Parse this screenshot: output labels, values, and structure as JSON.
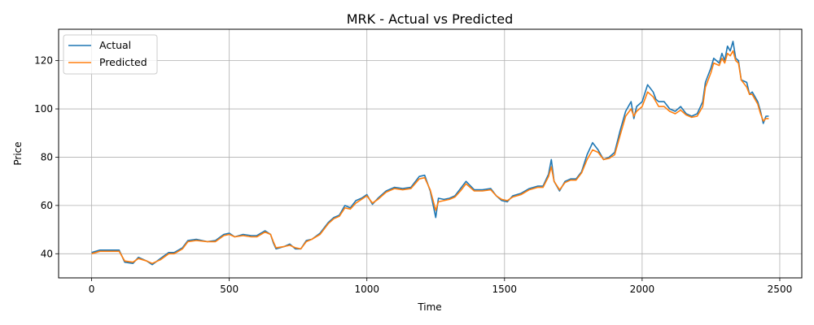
{
  "chart_data": {
    "type": "line",
    "title": "MRK - Actual vs Predicted",
    "xlabel": "Time",
    "ylabel": "Price",
    "xlim": [
      -120,
      2580
    ],
    "ylim": [
      30,
      133
    ],
    "xticks": [
      0,
      500,
      1000,
      1500,
      2000,
      2500
    ],
    "yticks": [
      40,
      60,
      80,
      100,
      120
    ],
    "grid": true,
    "legend_position": "top-left",
    "series": [
      {
        "name": "Actual",
        "color": "#1f77b4",
        "points": [
          [
            0,
            40.5
          ],
          [
            30,
            41.5
          ],
          [
            60,
            41.5
          ],
          [
            100,
            41.5
          ],
          [
            120,
            36.5
          ],
          [
            150,
            36
          ],
          [
            170,
            38.5
          ],
          [
            200,
            37
          ],
          [
            220,
            35.5
          ],
          [
            250,
            38
          ],
          [
            280,
            40.5
          ],
          [
            300,
            40.5
          ],
          [
            330,
            42.5
          ],
          [
            350,
            45.5
          ],
          [
            380,
            46
          ],
          [
            420,
            45
          ],
          [
            450,
            45.5
          ],
          [
            480,
            48
          ],
          [
            500,
            48.5
          ],
          [
            520,
            47
          ],
          [
            550,
            48
          ],
          [
            580,
            47.5
          ],
          [
            600,
            47.5
          ],
          [
            630,
            49.5
          ],
          [
            650,
            48
          ],
          [
            660,
            44.5
          ],
          [
            670,
            42
          ],
          [
            700,
            43
          ],
          [
            720,
            44
          ],
          [
            740,
            42
          ],
          [
            760,
            42
          ],
          [
            780,
            45.5
          ],
          [
            800,
            46
          ],
          [
            830,
            48.5
          ],
          [
            860,
            53
          ],
          [
            880,
            55
          ],
          [
            900,
            56
          ],
          [
            920,
            60
          ],
          [
            940,
            59
          ],
          [
            960,
            62
          ],
          [
            980,
            63
          ],
          [
            1000,
            64.5
          ],
          [
            1020,
            60.5
          ],
          [
            1040,
            63
          ],
          [
            1070,
            66
          ],
          [
            1100,
            67.5
          ],
          [
            1130,
            67
          ],
          [
            1160,
            67.5
          ],
          [
            1190,
            72
          ],
          [
            1210,
            72.5
          ],
          [
            1230,
            66
          ],
          [
            1250,
            55
          ],
          [
            1260,
            63
          ],
          [
            1280,
            62.5
          ],
          [
            1300,
            63
          ],
          [
            1320,
            64
          ],
          [
            1340,
            67
          ],
          [
            1360,
            70
          ],
          [
            1390,
            66.5
          ],
          [
            1420,
            66.5
          ],
          [
            1450,
            67
          ],
          [
            1470,
            64
          ],
          [
            1490,
            62
          ],
          [
            1510,
            61.5
          ],
          [
            1530,
            64
          ],
          [
            1560,
            65
          ],
          [
            1590,
            67
          ],
          [
            1620,
            68
          ],
          [
            1640,
            68
          ],
          [
            1660,
            73
          ],
          [
            1670,
            79
          ],
          [
            1680,
            70
          ],
          [
            1700,
            66
          ],
          [
            1720,
            70
          ],
          [
            1740,
            71
          ],
          [
            1760,
            71
          ],
          [
            1780,
            74
          ],
          [
            1800,
            81
          ],
          [
            1820,
            86
          ],
          [
            1840,
            83
          ],
          [
            1860,
            79
          ],
          [
            1880,
            80
          ],
          [
            1900,
            82
          ],
          [
            1920,
            91
          ],
          [
            1940,
            99
          ],
          [
            1960,
            103
          ],
          [
            1970,
            96
          ],
          [
            1980,
            101
          ],
          [
            2000,
            103
          ],
          [
            2020,
            110
          ],
          [
            2040,
            107
          ],
          [
            2050,
            104
          ],
          [
            2060,
            103
          ],
          [
            2080,
            103
          ],
          [
            2100,
            100
          ],
          [
            2120,
            99
          ],
          [
            2140,
            101
          ],
          [
            2160,
            98
          ],
          [
            2180,
            97
          ],
          [
            2200,
            98
          ],
          [
            2220,
            103
          ],
          [
            2230,
            111
          ],
          [
            2250,
            117
          ],
          [
            2260,
            121
          ],
          [
            2280,
            119
          ],
          [
            2290,
            123
          ],
          [
            2300,
            120
          ],
          [
            2310,
            126
          ],
          [
            2320,
            124
          ],
          [
            2330,
            128
          ],
          [
            2340,
            121
          ],
          [
            2350,
            120
          ],
          [
            2360,
            112
          ],
          [
            2380,
            111
          ],
          [
            2390,
            106
          ],
          [
            2400,
            107
          ],
          [
            2420,
            103
          ],
          [
            2430,
            99
          ],
          [
            2440,
            94
          ],
          [
            2450,
            97
          ],
          [
            2460,
            97
          ]
        ]
      },
      {
        "name": "Predicted",
        "color": "#ff7f0e",
        "points": [
          [
            0,
            40
          ],
          [
            30,
            41
          ],
          [
            60,
            41
          ],
          [
            100,
            41
          ],
          [
            120,
            37
          ],
          [
            150,
            36.5
          ],
          [
            170,
            38
          ],
          [
            200,
            37
          ],
          [
            220,
            36
          ],
          [
            250,
            37.5
          ],
          [
            280,
            40
          ],
          [
            300,
            40
          ],
          [
            330,
            42
          ],
          [
            350,
            45
          ],
          [
            380,
            45.5
          ],
          [
            420,
            45
          ],
          [
            450,
            45
          ],
          [
            480,
            47.5
          ],
          [
            500,
            48
          ],
          [
            520,
            47
          ],
          [
            550,
            47.5
          ],
          [
            580,
            47
          ],
          [
            600,
            47
          ],
          [
            630,
            49
          ],
          [
            650,
            48
          ],
          [
            660,
            45
          ],
          [
            670,
            42.5
          ],
          [
            700,
            43
          ],
          [
            720,
            43.5
          ],
          [
            740,
            42.5
          ],
          [
            760,
            42
          ],
          [
            780,
            45
          ],
          [
            800,
            46
          ],
          [
            830,
            48
          ],
          [
            860,
            52.5
          ],
          [
            880,
            54.5
          ],
          [
            900,
            55.5
          ],
          [
            920,
            59
          ],
          [
            940,
            58.5
          ],
          [
            960,
            61
          ],
          [
            980,
            62.5
          ],
          [
            1000,
            64
          ],
          [
            1020,
            61
          ],
          [
            1040,
            62.5
          ],
          [
            1070,
            65.5
          ],
          [
            1100,
            67
          ],
          [
            1130,
            66.5
          ],
          [
            1160,
            67
          ],
          [
            1190,
            71
          ],
          [
            1210,
            71.5
          ],
          [
            1230,
            66.5
          ],
          [
            1250,
            58
          ],
          [
            1260,
            61.5
          ],
          [
            1280,
            62
          ],
          [
            1300,
            62.5
          ],
          [
            1320,
            63.5
          ],
          [
            1340,
            66
          ],
          [
            1360,
            69
          ],
          [
            1390,
            66
          ],
          [
            1420,
            66
          ],
          [
            1450,
            66.5
          ],
          [
            1470,
            64
          ],
          [
            1490,
            62.5
          ],
          [
            1510,
            62
          ],
          [
            1530,
            63.5
          ],
          [
            1560,
            64.5
          ],
          [
            1590,
            66.5
          ],
          [
            1620,
            67.5
          ],
          [
            1640,
            67.5
          ],
          [
            1660,
            72
          ],
          [
            1670,
            76
          ],
          [
            1680,
            70
          ],
          [
            1700,
            66.5
          ],
          [
            1720,
            69.5
          ],
          [
            1740,
            70.5
          ],
          [
            1760,
            70.5
          ],
          [
            1780,
            73.5
          ],
          [
            1800,
            79
          ],
          [
            1820,
            83
          ],
          [
            1840,
            82
          ],
          [
            1860,
            79
          ],
          [
            1880,
            79.5
          ],
          [
            1900,
            81
          ],
          [
            1920,
            89
          ],
          [
            1940,
            97
          ],
          [
            1960,
            100
          ],
          [
            1970,
            97
          ],
          [
            1980,
            99
          ],
          [
            2000,
            101
          ],
          [
            2020,
            107
          ],
          [
            2040,
            105
          ],
          [
            2050,
            103
          ],
          [
            2060,
            101
          ],
          [
            2080,
            101
          ],
          [
            2100,
            99
          ],
          [
            2120,
            98
          ],
          [
            2140,
            99.5
          ],
          [
            2160,
            97.5
          ],
          [
            2180,
            96.5
          ],
          [
            2200,
            97
          ],
          [
            2220,
            101
          ],
          [
            2230,
            109
          ],
          [
            2250,
            115
          ],
          [
            2260,
            119
          ],
          [
            2280,
            118
          ],
          [
            2290,
            121
          ],
          [
            2300,
            119
          ],
          [
            2310,
            123
          ],
          [
            2320,
            122
          ],
          [
            2330,
            124
          ],
          [
            2340,
            120
          ],
          [
            2350,
            119
          ],
          [
            2360,
            112
          ],
          [
            2380,
            109
          ],
          [
            2390,
            106
          ],
          [
            2400,
            106
          ],
          [
            2420,
            102
          ],
          [
            2430,
            98
          ],
          [
            2440,
            95
          ],
          [
            2450,
            96
          ],
          [
            2460,
            96
          ]
        ]
      }
    ]
  }
}
